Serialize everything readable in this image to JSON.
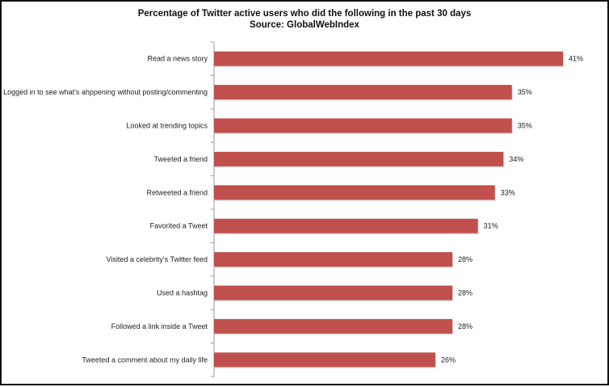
{
  "chart_data": {
    "type": "bar",
    "orientation": "horizontal",
    "title": "Percentage of Twitter active users who did the following in the past 30 days",
    "subtitle": "Source: GlobalWebIndex",
    "categories": [
      "Read a news story",
      "Logged in to see what's ahppening without posting/commenting",
      "Looked at trending topics",
      "Tweeted a friend",
      "Retweeted a friend",
      "Favorited a Tweet",
      "Visited a celebrity's Twitter feed",
      "Used a hashtag",
      "Followed a link inside a Tweet",
      "Tweeted a comment about my daily life"
    ],
    "values": [
      41,
      35,
      35,
      34,
      33,
      31,
      28,
      28,
      28,
      26
    ],
    "data_labels": [
      "41%",
      "35%",
      "35%",
      "34%",
      "33%",
      "31%",
      "28%",
      "28%",
      "28%",
      "26%"
    ],
    "unit": "%",
    "xlabel": "",
    "ylabel": "",
    "xlim": [
      0,
      41
    ],
    "grid": false,
    "legend": "none",
    "bar_color": "#c0504d"
  }
}
